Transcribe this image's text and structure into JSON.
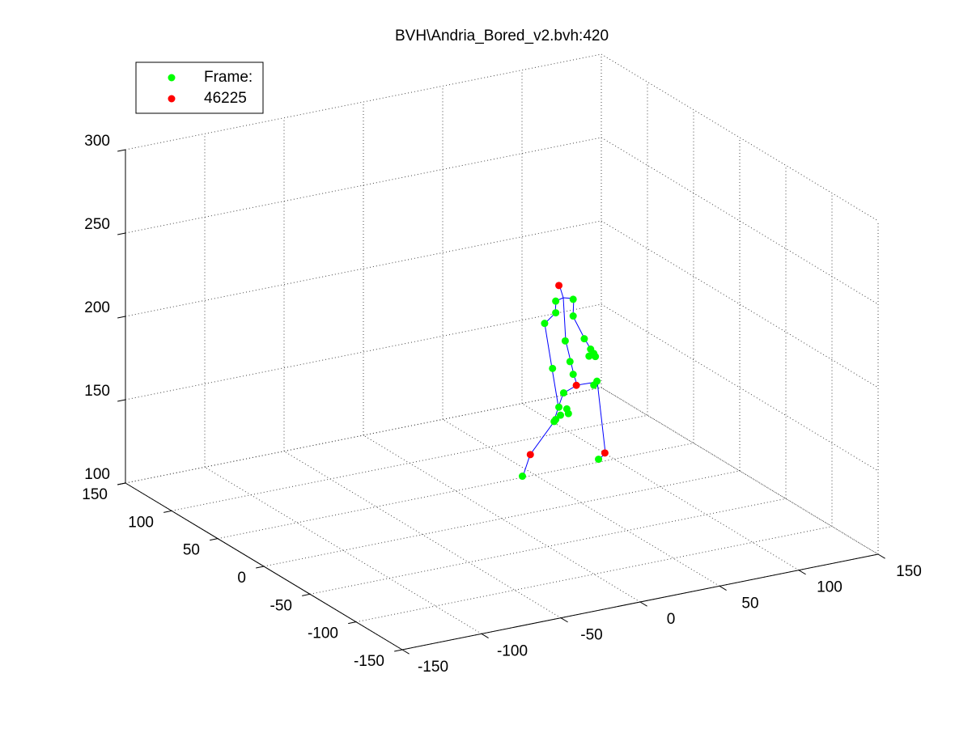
{
  "chart_data": {
    "type": "scatter3d",
    "title": "BVH\\Andria_Bored_v2.bvh:420",
    "xlim": [
      -150,
      150
    ],
    "ylim": [
      -150,
      150
    ],
    "zlim": [
      100,
      300
    ],
    "xticks": [
      -150,
      -100,
      -50,
      0,
      50,
      100,
      150
    ],
    "yticks": [
      -150,
      -100,
      -50,
      0,
      50,
      100,
      150
    ],
    "zticks": [
      100,
      150,
      200,
      250,
      300
    ],
    "grid": true,
    "legend": "upper left",
    "series": [
      {
        "name": "Frame:",
        "color": "#00ff00",
        "x": [
          45,
          34,
          34,
          45,
          27,
          40,
          52,
          43,
          56,
          58,
          59,
          55,
          32,
          45,
          58,
          60,
          39,
          36,
          41,
          42,
          34,
          33,
          37,
          13,
          61
        ],
        "y": [
          0,
          0,
          0,
          0,
          0,
          0,
          0,
          0,
          0,
          0,
          0,
          0,
          0,
          0,
          0,
          0,
          0,
          0,
          0,
          0,
          0,
          0,
          0,
          0,
          0
        ],
        "z": [
          223,
          224,
          217,
          213,
          212,
          199,
          198,
          186,
          191,
          188,
          186,
          187,
          184,
          178,
          169,
          171,
          168,
          160,
          158,
          155,
          153,
          152,
          155,
          123,
          124
        ]
      },
      {
        "name": "46225",
        "color": "#ff0000",
        "x": [
          36,
          47,
          18,
          65
        ],
        "y": [
          0,
          0,
          0,
          0
        ],
        "z": [
          233,
          171,
          135,
          127
        ]
      }
    ]
  }
}
